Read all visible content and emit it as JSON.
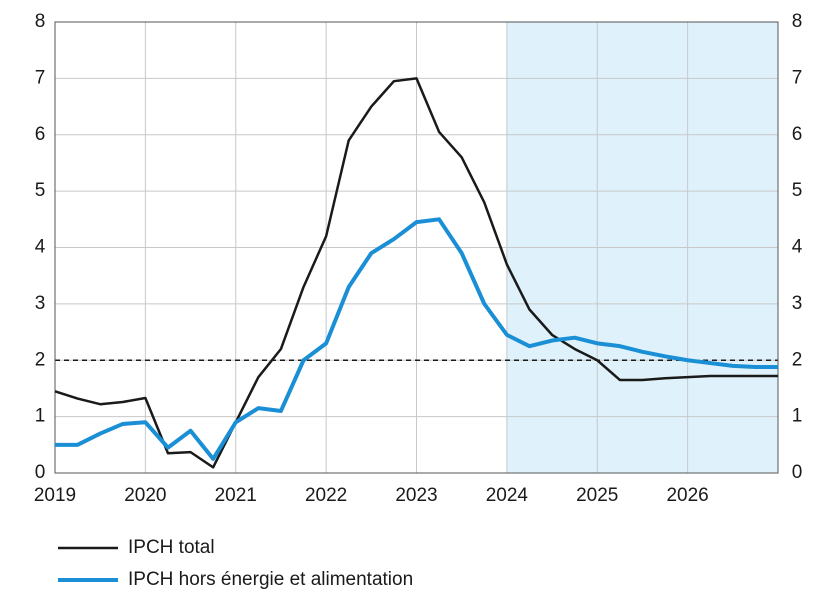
{
  "chart_data": {
    "type": "line",
    "x": [
      2019.0,
      2019.25,
      2019.5,
      2019.75,
      2020.0,
      2020.25,
      2020.5,
      2020.75,
      2021.0,
      2021.25,
      2021.5,
      2021.75,
      2022.0,
      2022.25,
      2022.5,
      2022.75,
      2023.0,
      2023.25,
      2023.5,
      2023.75,
      2024.0,
      2024.25,
      2024.5,
      2024.75,
      2025.0,
      2025.25,
      2025.5,
      2025.75,
      2026.0,
      2026.25,
      2026.5,
      2026.75,
      2027.0
    ],
    "series": [
      {
        "name": "IPCH total",
        "color": "#1a1a1a",
        "values": [
          1.45,
          1.32,
          1.22,
          1.26,
          1.33,
          0.35,
          0.37,
          0.1,
          0.9,
          1.7,
          2.2,
          3.3,
          4.2,
          5.9,
          6.5,
          6.95,
          7.0,
          6.05,
          5.6,
          4.8,
          3.7,
          2.9,
          2.45,
          2.2,
          2.0,
          1.65,
          1.65,
          1.68,
          1.7,
          1.72,
          1.72,
          1.72,
          1.72
        ]
      },
      {
        "name": "IPCH hors énergie et alimentation",
        "color": "#1a8fd6",
        "values": [
          0.5,
          0.5,
          0.7,
          0.87,
          0.9,
          0.45,
          0.75,
          0.25,
          0.9,
          1.15,
          1.1,
          2.0,
          2.3,
          3.3,
          3.9,
          4.15,
          4.45,
          4.5,
          3.9,
          3.0,
          2.45,
          2.25,
          2.35,
          2.4,
          2.3,
          2.25,
          2.15,
          2.07,
          2.0,
          1.95,
          1.9,
          1.88,
          1.88
        ]
      }
    ],
    "xlim": [
      2019,
      2027
    ],
    "xticks": [
      2019,
      2020,
      2021,
      2022,
      2023,
      2024,
      2025,
      2026
    ],
    "ylim": [
      0,
      8
    ],
    "yticks": [
      0,
      1,
      2,
      3,
      4,
      5,
      6,
      7,
      8
    ],
    "y2lim": [
      0,
      8
    ],
    "y2ticks": [
      0,
      1,
      2,
      3,
      4,
      5,
      6,
      7,
      8
    ],
    "grid": true,
    "shaded_x": [
      2024,
      2027
    ],
    "shade_color": "#dff2fb",
    "reference_y": 2
  }
}
